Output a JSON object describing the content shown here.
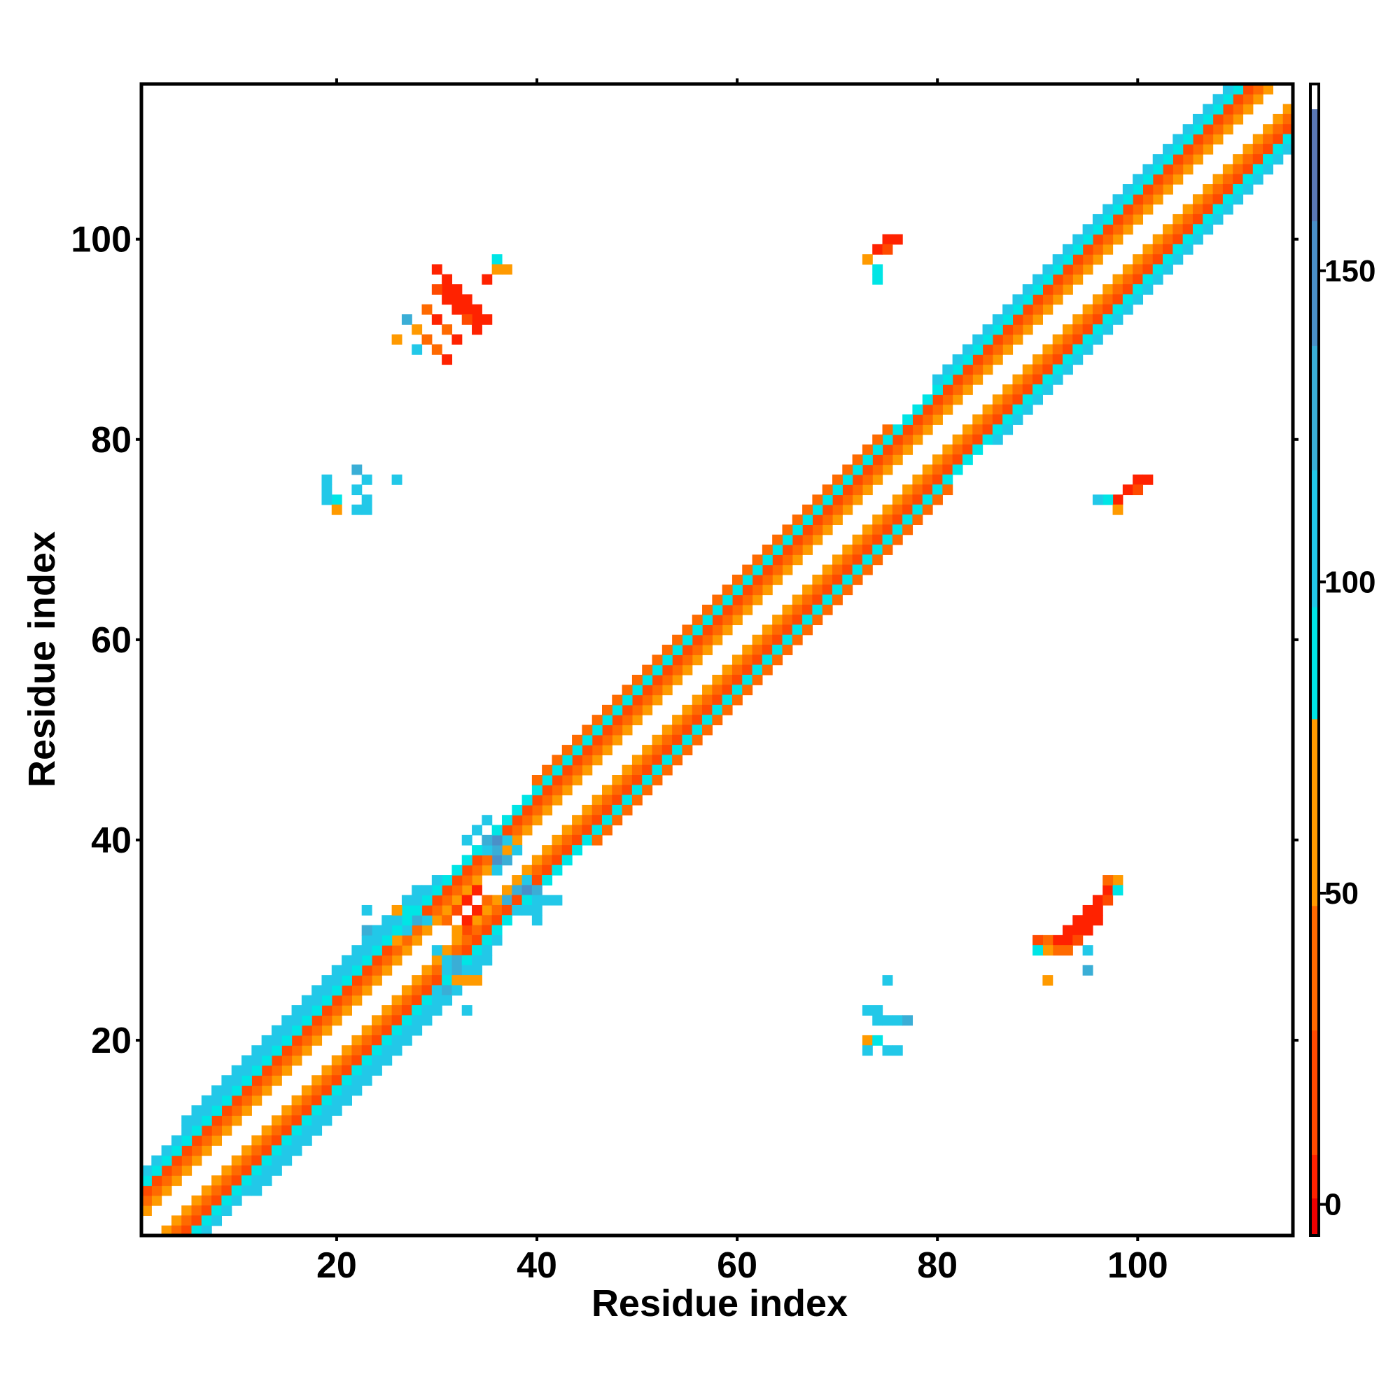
{
  "chart_data": {
    "type": "heatmap",
    "title": "",
    "xlabel": "Residue index",
    "ylabel": "Residue index",
    "xlim": [
      0.5,
      115.5
    ],
    "ylim": [
      0.5,
      115.5
    ],
    "x_ticks": [
      20,
      40,
      60,
      80,
      100
    ],
    "y_ticks": [
      20,
      40,
      60,
      80,
      100
    ],
    "colorbar": {
      "min": -5,
      "max": 180,
      "ticks": [
        0,
        50,
        100,
        150
      ],
      "bands": [
        {
          "from": -5,
          "to": 1,
          "color": "#ee0000"
        },
        {
          "from": 1,
          "to": 8,
          "color": "#ff2200"
        },
        {
          "from": 8,
          "to": 28,
          "color": "#ff4a00"
        },
        {
          "from": 28,
          "to": 48,
          "color": "#ff6a00"
        },
        {
          "from": 48,
          "to": 78,
          "color": "#ff9a00"
        },
        {
          "from": 78,
          "to": 96,
          "color": "#00e5e5"
        },
        {
          "from": 96,
          "to": 118,
          "color": "#22c8e8"
        },
        {
          "from": 118,
          "to": 138,
          "color": "#3aaed6"
        },
        {
          "from": 138,
          "to": 158,
          "color": "#4a90c8"
        },
        {
          "from": 158,
          "to": 176,
          "color": "#5a78b4"
        },
        {
          "from": 176,
          "to": 180,
          "color": "#ffffff"
        }
      ]
    },
    "diagonal_bands": [
      {
        "i_from": 1,
        "i_to": 115,
        "offset": 2,
        "value": 60
      },
      {
        "i_from": 1,
        "i_to": 115,
        "offset": 3,
        "value": 30
      },
      {
        "i_from": 1,
        "i_to": 115,
        "offset": 4,
        "value": 20
      },
      {
        "i_from": 1,
        "i_to": 115,
        "offset": 5,
        "value": 90
      },
      {
        "i_from": 1,
        "i_to": 30,
        "offset": 6,
        "value": 100
      },
      {
        "i_from": 5,
        "i_to": 28,
        "offset": 7,
        "value": 105
      },
      {
        "i_from": 80,
        "i_to": 110,
        "offset": 6,
        "value": 100
      },
      {
        "i_from": 40,
        "i_to": 75,
        "offset": 6,
        "value": 40
      }
    ],
    "contacts": [
      {
        "x": 30,
        "y": 97,
        "value": 5
      },
      {
        "x": 31,
        "y": 96,
        "value": 5
      },
      {
        "x": 32,
        "y": 95,
        "value": 3
      },
      {
        "x": 33,
        "y": 94,
        "value": 5
      },
      {
        "x": 34,
        "y": 93,
        "value": 3
      },
      {
        "x": 35,
        "y": 92,
        "value": 5
      },
      {
        "x": 31,
        "y": 95,
        "value": 3
      },
      {
        "x": 32,
        "y": 94,
        "value": 5
      },
      {
        "x": 33,
        "y": 93,
        "value": 3
      },
      {
        "x": 34,
        "y": 92,
        "value": 5
      },
      {
        "x": 30,
        "y": 95,
        "value": 25
      },
      {
        "x": 31,
        "y": 94,
        "value": 5
      },
      {
        "x": 32,
        "y": 93,
        "value": 5
      },
      {
        "x": 33,
        "y": 92,
        "value": 25
      },
      {
        "x": 34,
        "y": 91,
        "value": 5
      },
      {
        "x": 29,
        "y": 93,
        "value": 40
      },
      {
        "x": 30,
        "y": 92,
        "value": 5
      },
      {
        "x": 31,
        "y": 91,
        "value": 40
      },
      {
        "x": 32,
        "y": 90,
        "value": 5
      },
      {
        "x": 28,
        "y": 91,
        "value": 60
      },
      {
        "x": 29,
        "y": 90,
        "value": 40
      },
      {
        "x": 30,
        "y": 89,
        "value": 40
      },
      {
        "x": 31,
        "y": 88,
        "value": 5
      },
      {
        "x": 26,
        "y": 90,
        "value": 60
      },
      {
        "x": 27,
        "y": 92,
        "value": 120
      },
      {
        "x": 28,
        "y": 89,
        "value": 100
      },
      {
        "x": 36,
        "y": 98,
        "value": 90
      },
      {
        "x": 37,
        "y": 97,
        "value": 60
      },
      {
        "x": 36,
        "y": 97,
        "value": 60
      },
      {
        "x": 35,
        "y": 96,
        "value": 5
      },
      {
        "x": 75,
        "y": 100,
        "value": 5
      },
      {
        "x": 76,
        "y": 100,
        "value": 5
      },
      {
        "x": 74,
        "y": 99,
        "value": 5
      },
      {
        "x": 75,
        "y": 99,
        "value": 25
      },
      {
        "x": 73,
        "y": 98,
        "value": 60
      },
      {
        "x": 74,
        "y": 97,
        "value": 90
      },
      {
        "x": 74,
        "y": 96,
        "value": 90
      },
      {
        "x": 19,
        "y": 76,
        "value": 100
      },
      {
        "x": 19,
        "y": 75,
        "value": 100
      },
      {
        "x": 20,
        "y": 74,
        "value": 90
      },
      {
        "x": 19,
        "y": 74,
        "value": 100
      },
      {
        "x": 20,
        "y": 73,
        "value": 60
      },
      {
        "x": 22,
        "y": 77,
        "value": 120
      },
      {
        "x": 23,
        "y": 76,
        "value": 100
      },
      {
        "x": 22,
        "y": 75,
        "value": 100
      },
      {
        "x": 23,
        "y": 74,
        "value": 100
      },
      {
        "x": 22,
        "y": 73,
        "value": 100
      },
      {
        "x": 23,
        "y": 73,
        "value": 100
      },
      {
        "x": 26,
        "y": 76,
        "value": 100
      },
      {
        "x": 100,
        "y": 76,
        "value": 5
      },
      {
        "x": 101,
        "y": 76,
        "value": 5
      },
      {
        "x": 99,
        "y": 75,
        "value": 5
      },
      {
        "x": 100,
        "y": 75,
        "value": 25
      },
      {
        "x": 98,
        "y": 74,
        "value": 5
      },
      {
        "x": 97,
        "y": 74,
        "value": 90
      },
      {
        "x": 96,
        "y": 74,
        "value": 100
      },
      {
        "x": 98,
        "y": 73,
        "value": 60
      },
      {
        "x": 97,
        "y": 35,
        "value": 5
      },
      {
        "x": 96,
        "y": 34,
        "value": 5
      },
      {
        "x": 95,
        "y": 33,
        "value": 3
      },
      {
        "x": 94,
        "y": 32,
        "value": 5
      },
      {
        "x": 93,
        "y": 31,
        "value": 3
      },
      {
        "x": 92,
        "y": 30,
        "value": 5
      },
      {
        "x": 96,
        "y": 33,
        "value": 5
      },
      {
        "x": 95,
        "y": 32,
        "value": 3
      },
      {
        "x": 94,
        "y": 31,
        "value": 5
      },
      {
        "x": 93,
        "y": 30,
        "value": 5
      },
      {
        "x": 97,
        "y": 34,
        "value": 25
      },
      {
        "x": 96,
        "y": 32,
        "value": 5
      },
      {
        "x": 95,
        "y": 31,
        "value": 5
      },
      {
        "x": 94,
        "y": 30,
        "value": 25
      },
      {
        "x": 93,
        "y": 29,
        "value": 40
      },
      {
        "x": 92,
        "y": 29,
        "value": 40
      },
      {
        "x": 91,
        "y": 30,
        "value": 40
      },
      {
        "x": 90,
        "y": 30,
        "value": 25
      },
      {
        "x": 91,
        "y": 29,
        "value": 60
      },
      {
        "x": 90,
        "y": 29,
        "value": 90
      },
      {
        "x": 95,
        "y": 29,
        "value": 100
      },
      {
        "x": 98,
        "y": 36,
        "value": 60
      },
      {
        "x": 98,
        "y": 35,
        "value": 90
      },
      {
        "x": 97,
        "y": 36,
        "value": 40
      },
      {
        "x": 91,
        "y": 26,
        "value": 60
      },
      {
        "x": 95,
        "y": 27,
        "value": 120
      },
      {
        "x": 73,
        "y": 23,
        "value": 100
      },
      {
        "x": 74,
        "y": 23,
        "value": 100
      },
      {
        "x": 75,
        "y": 22,
        "value": 100
      },
      {
        "x": 76,
        "y": 22,
        "value": 100
      },
      {
        "x": 77,
        "y": 22,
        "value": 120
      },
      {
        "x": 74,
        "y": 22,
        "value": 100
      },
      {
        "x": 73,
        "y": 20,
        "value": 60
      },
      {
        "x": 74,
        "y": 20,
        "value": 90
      },
      {
        "x": 73,
        "y": 19,
        "value": 100
      },
      {
        "x": 76,
        "y": 19,
        "value": 100
      },
      {
        "x": 75,
        "y": 19,
        "value": 100
      },
      {
        "x": 75,
        "y": 26,
        "value": 100
      },
      {
        "x": 35,
        "y": 42,
        "value": 100
      },
      {
        "x": 34,
        "y": 41,
        "value": 100
      },
      {
        "x": 33,
        "y": 40,
        "value": 100
      },
      {
        "x": 35,
        "y": 40,
        "value": 130
      },
      {
        "x": 36,
        "y": 40,
        "value": 140
      },
      {
        "x": 36,
        "y": 39,
        "value": 120
      },
      {
        "x": 35,
        "y": 39,
        "value": 100
      },
      {
        "x": 36,
        "y": 38,
        "value": 150
      },
      {
        "x": 37,
        "y": 38,
        "value": 120
      },
      {
        "x": 36,
        "y": 37,
        "value": 100
      },
      {
        "x": 37,
        "y": 40,
        "value": 100
      },
      {
        "x": 38,
        "y": 39,
        "value": 100
      },
      {
        "x": 39,
        "y": 36,
        "value": 100
      },
      {
        "x": 38,
        "y": 35,
        "value": 130
      },
      {
        "x": 39,
        "y": 35,
        "value": 140
      },
      {
        "x": 40,
        "y": 35,
        "value": 120
      },
      {
        "x": 40,
        "y": 34,
        "value": 100
      },
      {
        "x": 41,
        "y": 34,
        "value": 100
      },
      {
        "x": 40,
        "y": 33,
        "value": 100
      },
      {
        "x": 42,
        "y": 34,
        "value": 100
      },
      {
        "x": 37,
        "y": 34,
        "value": 120
      },
      {
        "x": 38,
        "y": 33,
        "value": 100
      },
      {
        "x": 39,
        "y": 33,
        "value": 100
      },
      {
        "x": 40,
        "y": 32,
        "value": 100
      },
      {
        "x": 34,
        "y": 35,
        "value": 5
      },
      {
        "x": 33,
        "y": 34,
        "value": 5
      },
      {
        "x": 32,
        "y": 33,
        "value": 25
      },
      {
        "x": 34,
        "y": 33,
        "value": 5
      },
      {
        "x": 35,
        "y": 34,
        "value": 40
      },
      {
        "x": 33,
        "y": 32,
        "value": 5
      },
      {
        "x": 31,
        "y": 32,
        "value": 40
      },
      {
        "x": 32,
        "y": 31,
        "value": 60
      },
      {
        "x": 33,
        "y": 31,
        "value": 25
      },
      {
        "x": 23,
        "y": 33,
        "value": 100
      },
      {
        "x": 23,
        "y": 31,
        "value": 120
      },
      {
        "x": 24,
        "y": 31,
        "value": 100
      },
      {
        "x": 25,
        "y": 31,
        "value": 100
      },
      {
        "x": 26,
        "y": 33,
        "value": 60
      },
      {
        "x": 27,
        "y": 33,
        "value": 90
      },
      {
        "x": 28,
        "y": 32,
        "value": 120
      },
      {
        "x": 29,
        "y": 32,
        "value": 100
      },
      {
        "x": 27,
        "y": 31,
        "value": 110
      },
      {
        "x": 26,
        "y": 30,
        "value": 60
      },
      {
        "x": 31,
        "y": 27,
        "value": 100
      },
      {
        "x": 32,
        "y": 27,
        "value": 120
      },
      {
        "x": 33,
        "y": 26,
        "value": 60
      },
      {
        "x": 34,
        "y": 26,
        "value": 60
      },
      {
        "x": 32,
        "y": 26,
        "value": 60
      },
      {
        "x": 31,
        "y": 25,
        "value": 120
      },
      {
        "x": 30,
        "y": 25,
        "value": 100
      },
      {
        "x": 31,
        "y": 24,
        "value": 100
      },
      {
        "x": 33,
        "y": 23,
        "value": 100
      },
      {
        "x": 30,
        "y": 29,
        "value": 100
      },
      {
        "x": 31,
        "y": 28,
        "value": 110
      },
      {
        "x": 32,
        "y": 28,
        "value": 120
      },
      {
        "x": 33,
        "y": 27,
        "value": 100
      }
    ]
  }
}
